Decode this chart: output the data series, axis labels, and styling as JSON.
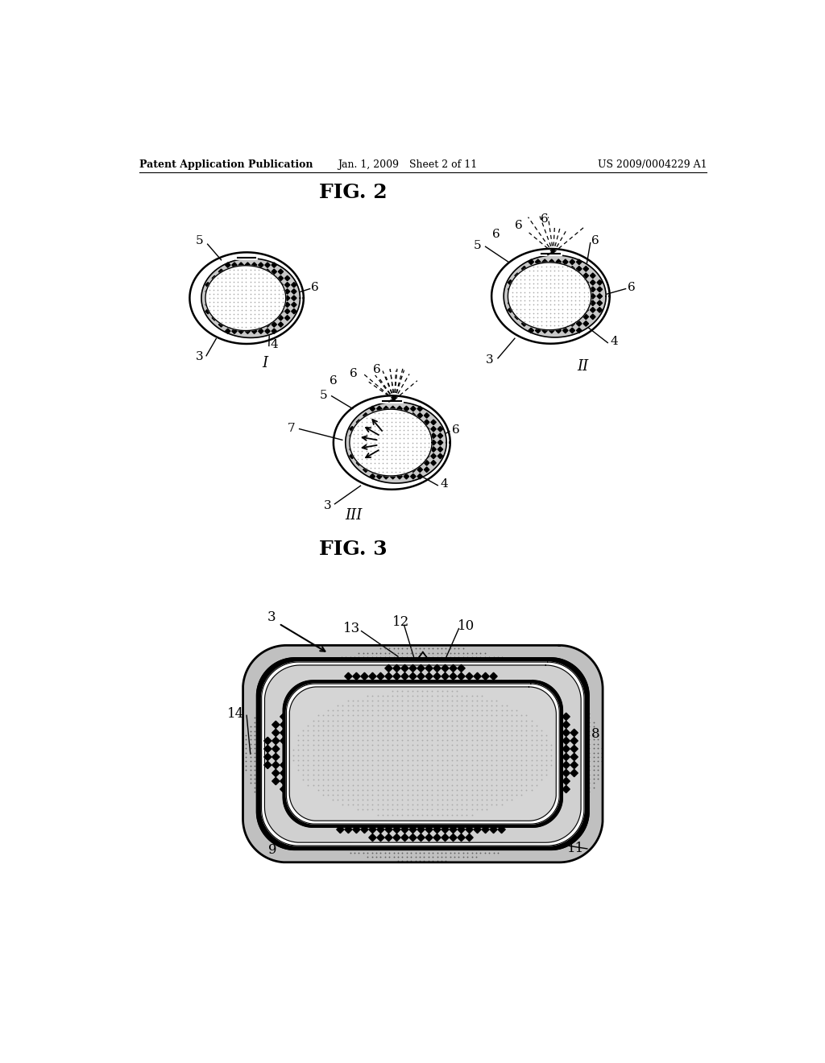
{
  "header_left": "Patent Application Publication",
  "header_mid": "Jan. 1, 2009",
  "header_mid2": "Sheet 2 of 11",
  "header_right": "US 2009/0004229 A1",
  "fig2_title": "FIG. 2",
  "fig3_title": "FIG. 3",
  "bg_color": "#ffffff",
  "text_color": "#000000"
}
